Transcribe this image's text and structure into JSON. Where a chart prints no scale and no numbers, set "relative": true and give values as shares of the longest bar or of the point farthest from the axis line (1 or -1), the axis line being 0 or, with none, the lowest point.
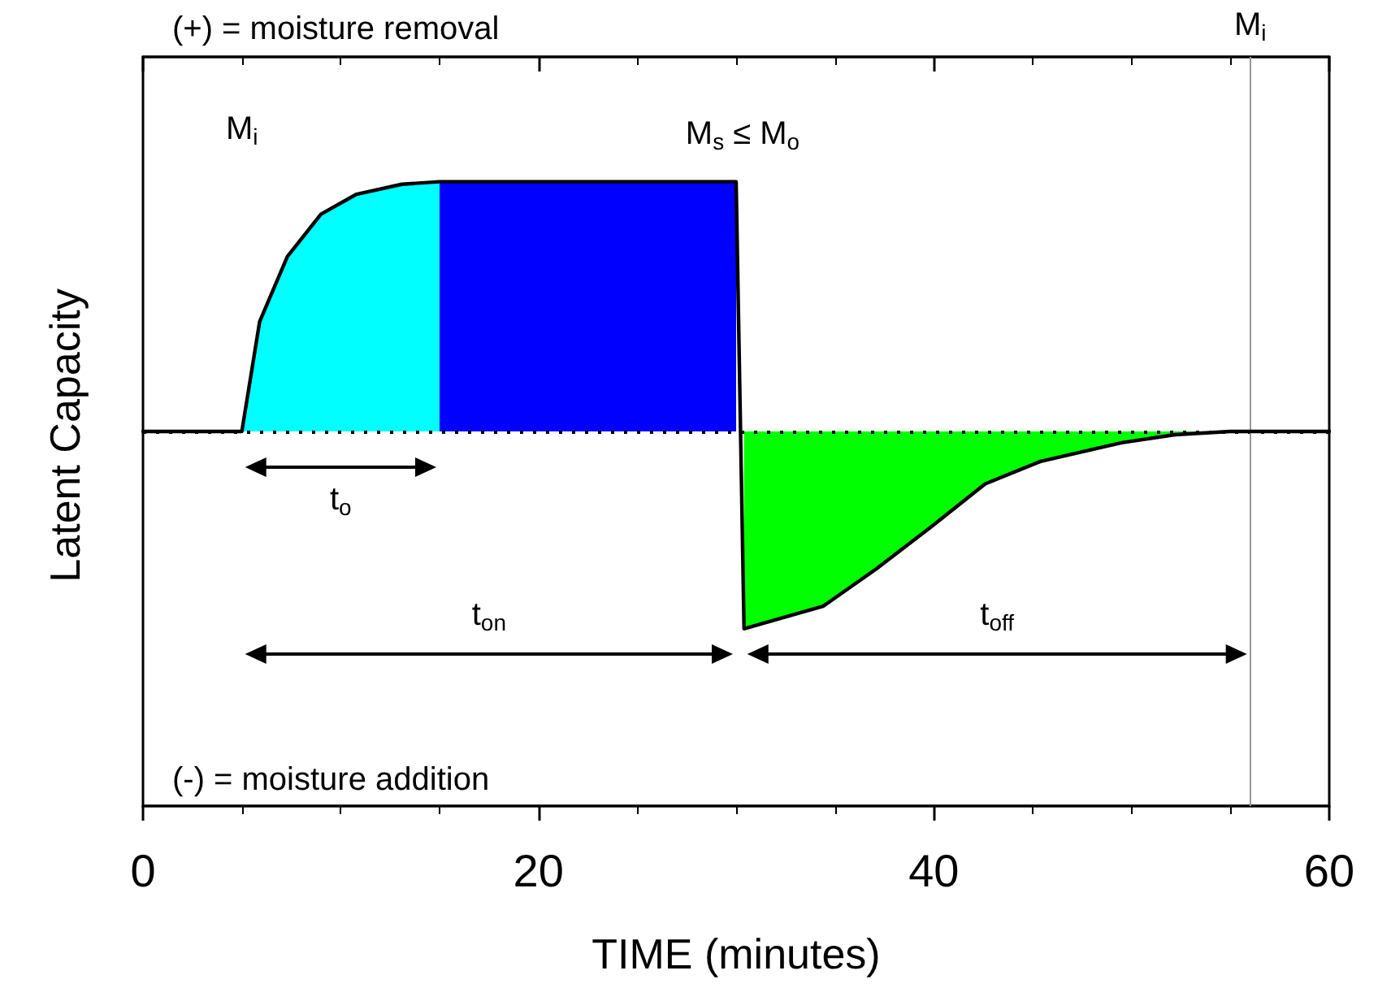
{
  "chart_data": {
    "type": "area",
    "relative": true,
    "xlabel": "TIME (minutes)",
    "ylabel": "Latent Capacity",
    "marker": "none",
    "tick_labels": "x",
    "xlim": [
      0,
      60
    ],
    "xticks": [
      0,
      20,
      40,
      60
    ],
    "series": [
      {
        "color": "#00ffff",
        "x": [
          5,
          5.9,
          7.3,
          9,
          10.8,
          13.1,
          15
        ],
        "values": [
          0,
          0.44,
          0.7,
          0.87,
          0.95,
          0.99,
          1
        ]
      },
      {
        "color": "#0000ff",
        "x": [
          15,
          30
        ],
        "values": [
          1,
          1
        ]
      },
      {
        "color": "#00ff00",
        "x": [
          30.4,
          34.4,
          37.1,
          39.9,
          42.6,
          45.4,
          49.5,
          52.2,
          55
        ],
        "values": [
          -0.79,
          -0.7,
          -0.55,
          -0.38,
          -0.21,
          -0.12,
          -0.045,
          -0.013,
          0
        ]
      },
      {
        "type": "line",
        "color": "#000000",
        "x": [
          0,
          5,
          5.9,
          7.3,
          9,
          10.8,
          13.1,
          15,
          30,
          30.4,
          34.4,
          37.1,
          39.9,
          42.6,
          45.4,
          49.5,
          52.2,
          55,
          60
        ],
        "values": [
          0,
          0,
          0.44,
          0.7,
          0.87,
          0.95,
          0.99,
          1,
          1,
          -0.79,
          -0.7,
          -0.55,
          -0.38,
          -0.21,
          -0.12,
          -0.045,
          -0.013,
          0,
          0
        ]
      }
    ],
    "ref_lines": [
      {
        "axis": "y",
        "value": 0,
        "label": null,
        "color": "#000000",
        "line_style": "dotted"
      },
      {
        "axis": "x",
        "value": 56,
        "label": "M$_{i}$",
        "color": "#999999",
        "line_style": "solid"
      }
    ],
    "annotations": [
      "(+) = moisture removal",
      "(-) = moisture addition",
      "t$_{o}$",
      "t$_{on}$",
      "t$_{off}$",
      "M$_{i}$",
      "M$_{s}$ ≤ M$_{o}$"
    ]
  }
}
